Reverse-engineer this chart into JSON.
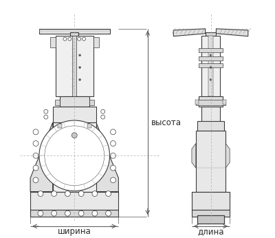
{
  "bg_color": "#ffffff",
  "line_color": "#3a3a3a",
  "dim_line_color": "#555555",
  "label_color": "#2a2a2a",
  "labels": {
    "width": "ширина",
    "height": "высота",
    "depth": "длина"
  },
  "fig_width": 4.0,
  "fig_height": 3.46,
  "dpi": 100
}
